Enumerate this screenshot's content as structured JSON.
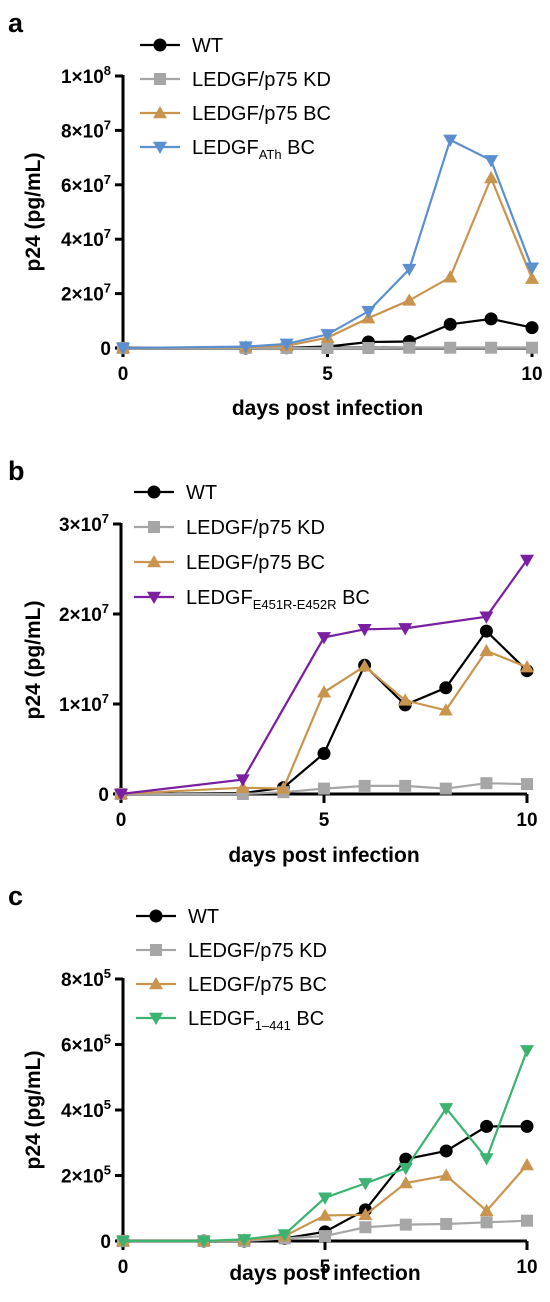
{
  "chart_data": [
    {
      "panel": "a",
      "type": "line",
      "xlabel": "days post infection",
      "ylabel": "p24 (pg/mL)",
      "xlim": [
        0,
        10
      ],
      "ylim": [
        0,
        100000000
      ],
      "x_ticks": [
        {
          "value": 0,
          "label": "0"
        },
        {
          "value": 5,
          "label": "5"
        },
        {
          "value": 10,
          "label": "10"
        }
      ],
      "y_ticks": [
        {
          "value": 0,
          "base": "0",
          "exp": ""
        },
        {
          "value": 20000000,
          "base": "2×10",
          "exp": "7"
        },
        {
          "value": 40000000,
          "base": "4×10",
          "exp": "7"
        },
        {
          "value": 60000000,
          "base": "6×10",
          "exp": "7"
        },
        {
          "value": 80000000,
          "base": "8×10",
          "exp": "7"
        },
        {
          "value": 100000000,
          "base": "1×10",
          "exp": "8"
        }
      ],
      "series": [
        {
          "name": "WT",
          "name_sub": "",
          "name_suffix": "",
          "color": "#000000",
          "marker": "circle",
          "x": [
            0,
            3,
            4,
            5,
            6,
            7,
            8,
            9,
            10
          ],
          "y": [
            0,
            0,
            100000,
            500000,
            2200000,
            2400000,
            8700000,
            10700000,
            7500000
          ]
        },
        {
          "name": "LEDGF/p75 KD",
          "name_sub": "",
          "name_suffix": "",
          "color": "#a6a6a6",
          "marker": "square",
          "x": [
            0,
            3,
            4,
            5,
            6,
            7,
            8,
            9,
            10
          ],
          "y": [
            0,
            0,
            0,
            0,
            0,
            100000,
            100000,
            100000,
            100000
          ]
        },
        {
          "name": "LEDGF/p75 BC",
          "name_sub": "",
          "name_suffix": "",
          "color": "#c9954e",
          "marker": "triangle-up",
          "x": [
            0,
            3,
            4,
            5,
            6,
            7,
            8,
            9,
            10
          ],
          "y": [
            0,
            300000,
            800000,
            3800000,
            11000000,
            17500000,
            26000000,
            62500000,
            25500000
          ]
        },
        {
          "name": "LEDGF",
          "name_sub": "ATh",
          "name_suffix": " BC",
          "color": "#5b8fd0",
          "marker": "triangle-down",
          "x": [
            0,
            3,
            4,
            5,
            6,
            7,
            8,
            9,
            10
          ],
          "y": [
            0,
            500000,
            1500000,
            5000000,
            13500000,
            29000000,
            76500000,
            69000000,
            29500000
          ]
        }
      ]
    },
    {
      "panel": "b",
      "type": "line",
      "xlabel": "days post infection",
      "ylabel": "p24 (pg/mL)",
      "xlim": [
        0,
        10
      ],
      "ylim": [
        0,
        30000000
      ],
      "x_ticks": [
        {
          "value": 0,
          "label": "0"
        },
        {
          "value": 5,
          "label": "5"
        },
        {
          "value": 10,
          "label": "10"
        }
      ],
      "y_ticks": [
        {
          "value": 0,
          "base": "0",
          "exp": ""
        },
        {
          "value": 10000000,
          "base": "1×10",
          "exp": "7"
        },
        {
          "value": 20000000,
          "base": "2×10",
          "exp": "7"
        },
        {
          "value": 30000000,
          "base": "3×10",
          "exp": "7"
        }
      ],
      "series": [
        {
          "name": "WT",
          "name_sub": "",
          "name_suffix": "",
          "color": "#000000",
          "marker": "circle",
          "x": [
            0,
            3,
            4,
            5,
            6,
            7,
            8,
            9,
            10
          ],
          "y": [
            0,
            100000,
            700000,
            4500000,
            14300000,
            9900000,
            11800000,
            18100000,
            13700000
          ]
        },
        {
          "name": "LEDGF/p75 KD",
          "name_sub": "",
          "name_suffix": "",
          "color": "#a6a6a6",
          "marker": "square",
          "x": [
            0,
            3,
            4,
            5,
            6,
            7,
            8,
            9,
            10
          ],
          "y": [
            0,
            0,
            200000,
            600000,
            900000,
            900000,
            600000,
            1200000,
            1100000
          ]
        },
        {
          "name": "LEDGF/p75 BC",
          "name_sub": "",
          "name_suffix": "",
          "color": "#c9954e",
          "marker": "triangle-up",
          "x": [
            0,
            3,
            4,
            5,
            6,
            7,
            8,
            9,
            10
          ],
          "y": [
            0,
            700000,
            600000,
            11300000,
            14200000,
            10400000,
            9300000,
            15900000,
            14100000
          ]
        },
        {
          "name": "LEDGF",
          "name_sub": "E451R-E452R",
          "name_suffix": " BC",
          "color": "#7b1fa2",
          "marker": "triangle-down",
          "x": [
            0,
            3,
            5,
            6,
            7,
            9,
            10
          ],
          "y": [
            0,
            1600000,
            17400000,
            18300000,
            18400000,
            19700000,
            26000000
          ]
        }
      ]
    },
    {
      "panel": "c",
      "type": "line",
      "xlabel": "days post infection",
      "ylabel": "p24 (pg/mL)",
      "xlim": [
        0,
        10
      ],
      "ylim": [
        0,
        800000
      ],
      "x_ticks": [
        {
          "value": 0,
          "label": "0"
        },
        {
          "value": 5,
          "label": "5"
        },
        {
          "value": 10,
          "label": "10"
        }
      ],
      "y_ticks": [
        {
          "value": 0,
          "base": "0",
          "exp": ""
        },
        {
          "value": 200000,
          "base": "2×10",
          "exp": "5"
        },
        {
          "value": 400000,
          "base": "4×10",
          "exp": "5"
        },
        {
          "value": 600000,
          "base": "6×10",
          "exp": "5"
        },
        {
          "value": 800000,
          "base": "8×10",
          "exp": "5"
        }
      ],
      "series": [
        {
          "name": "WT",
          "name_sub": "",
          "name_suffix": "",
          "color": "#000000",
          "marker": "circle",
          "x": [
            0,
            2,
            3,
            4,
            5,
            6,
            7,
            8,
            9,
            10
          ],
          "y": [
            0,
            0,
            0,
            8000,
            28000,
            95000,
            250000,
            275000,
            350000,
            350000
          ]
        },
        {
          "name": "LEDGF/p75 KD",
          "name_sub": "",
          "name_suffix": "",
          "color": "#a6a6a6",
          "marker": "square",
          "x": [
            0,
            2,
            3,
            4,
            5,
            6,
            7,
            8,
            9,
            10
          ],
          "y": [
            0,
            0,
            0,
            8000,
            15000,
            42000,
            50000,
            52000,
            57000,
            62000
          ]
        },
        {
          "name": "LEDGF/p75 BC",
          "name_sub": "",
          "name_suffix": "",
          "color": "#c9954e",
          "marker": "triangle-up",
          "x": [
            0,
            2,
            3,
            4,
            5,
            6,
            7,
            8,
            9,
            10
          ],
          "y": [
            0,
            0,
            3000,
            15000,
            78000,
            80000,
            177000,
            200000,
            92000,
            232000
          ]
        },
        {
          "name": "LEDGF",
          "name_sub": "1–441",
          "name_suffix": " BC",
          "color": "#3cb371",
          "marker": "triangle-down",
          "x": [
            0,
            2,
            3,
            4,
            5,
            6,
            7,
            8,
            9,
            10
          ],
          "y": [
            0,
            0,
            5000,
            20000,
            132000,
            176000,
            222000,
            405000,
            252000,
            582000
          ]
        }
      ]
    }
  ]
}
